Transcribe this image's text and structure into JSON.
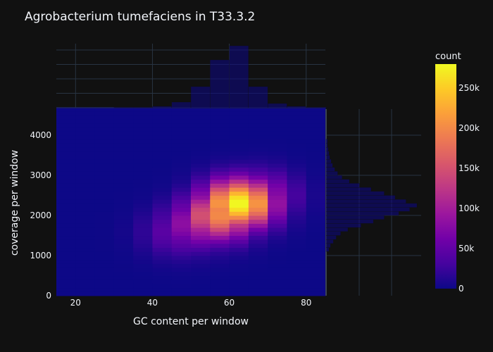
{
  "chart_data": {
    "type": "heatmap",
    "title": "Agrobacterium tumefaciens in T33.3.2",
    "xlabel": "GC content per window",
    "ylabel": "coverage per window",
    "x_ticks": [
      "20",
      "40",
      "60",
      "80"
    ],
    "y_ticks": [
      "0",
      "1000",
      "2000",
      "3000",
      "4000"
    ],
    "xlim": [
      15,
      85
    ],
    "ylim": [
      0,
      4650
    ],
    "colorbar": {
      "title": "count",
      "ticks": [
        "0",
        "50k",
        "100k",
        "150k",
        "200k",
        "250k"
      ],
      "range": [
        0,
        280000
      ],
      "colors": [
        "#0d0887",
        "#46039f",
        "#7201a8",
        "#9c179e",
        "#bd3786",
        "#d8576b",
        "#ed7953",
        "#fb9f3a",
        "#fdca26",
        "#f0f921"
      ]
    },
    "heatmap": {
      "x_bin_size": 5,
      "y_bin_size": 100,
      "peak_counts": [
        {
          "gc": 62.5,
          "coverage": 2300,
          "count": 280000
        },
        {
          "gc": 57.5,
          "coverage": 2000,
          "count": 200000
        },
        {
          "gc": 52.5,
          "coverage": 1800,
          "count": 110000
        },
        {
          "gc": 67.5,
          "coverage": 2500,
          "count": 100000
        },
        {
          "gc": 47.5,
          "coverage": 1600,
          "count": 60000
        }
      ]
    },
    "marginal_x": {
      "type": "bar",
      "bin_centers": [
        17.5,
        22.5,
        27.5,
        32.5,
        37.5,
        42.5,
        47.5,
        52.5,
        57.5,
        62.5,
        67.5,
        72.5,
        77.5,
        82.5
      ],
      "values": [
        0,
        0,
        0,
        1,
        2,
        10,
        40,
        150,
        340,
        440,
        150,
        30,
        10,
        2
      ]
    },
    "marginal_y": {
      "type": "bar",
      "bin_size": 100,
      "bin_centers": [
        1150,
        1250,
        1350,
        1450,
        1550,
        1650,
        1750,
        1850,
        1950,
        2050,
        2150,
        2250,
        2350,
        2450,
        2550,
        2650,
        2750,
        2850,
        2950,
        3050,
        3150,
        3250,
        3350,
        3450,
        3550,
        3650,
        3750,
        3850
      ],
      "values": [
        4,
        6,
        10,
        14,
        20,
        30,
        48,
        65,
        80,
        100,
        115,
        125,
        110,
        95,
        80,
        62,
        46,
        32,
        22,
        16,
        12,
        9,
        7,
        5,
        4,
        3,
        2,
        2
      ]
    }
  }
}
